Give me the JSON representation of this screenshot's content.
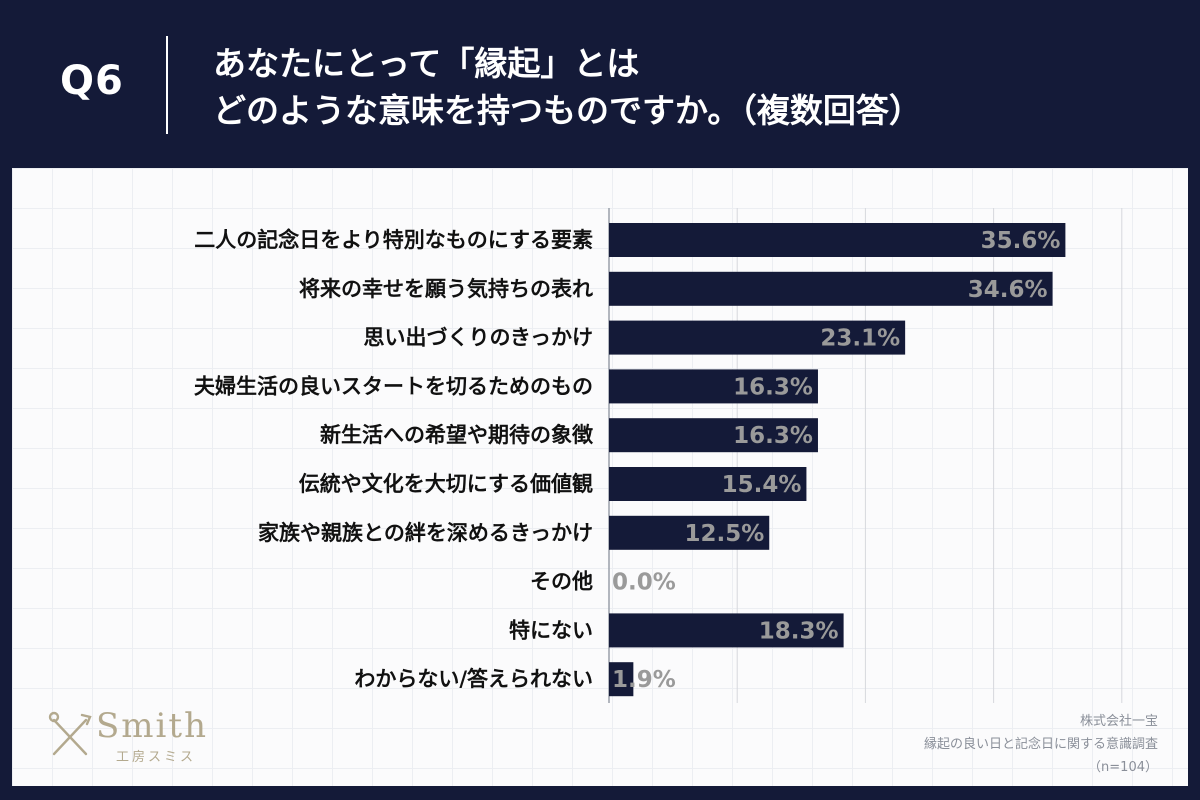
{
  "header": {
    "question_number": "Q6",
    "title_line1": "あなたにとって「縁起」とは",
    "title_line2": "どのような意味を持つものですか。（複数回答）"
  },
  "chart_data": {
    "type": "bar",
    "orientation": "horizontal",
    "categories": [
      "二人の記念日をより特別なものにする要素",
      "将来の幸せを願う気持ちの表れ",
      "思い出づくりのきっかけ",
      "夫婦生活の良いスタートを切るためのもの",
      "新生活への希望や期待の象徴",
      "伝統や文化を大切にする価値観",
      "家族や親族との絆を深めるきっかけ",
      "その他",
      "特にない",
      "わからない/答えられない"
    ],
    "values": [
      35.6,
      34.6,
      23.1,
      16.3,
      16.3,
      15.4,
      12.5,
      0.0,
      18.3,
      1.9
    ],
    "value_labels": [
      "35.6%",
      "34.6%",
      "23.1%",
      "16.3%",
      "16.3%",
      "15.4%",
      "12.5%",
      "0.0%",
      "18.3%",
      "1.9%"
    ],
    "xlim": [
      0,
      40
    ],
    "grid": true,
    "bar_color": "#141a38",
    "label_color": "#9a9a9a"
  },
  "logo": {
    "name": "Smith",
    "subtitle": "工房スミス"
  },
  "source": {
    "company": "株式会社一宝",
    "survey": "縁起の良い日と記念日に関する意識調査",
    "sample": "（n=104）"
  },
  "colors": {
    "background": "#141a38",
    "panel": "#fbfbfc",
    "accent_gold": "#b3a98e"
  }
}
